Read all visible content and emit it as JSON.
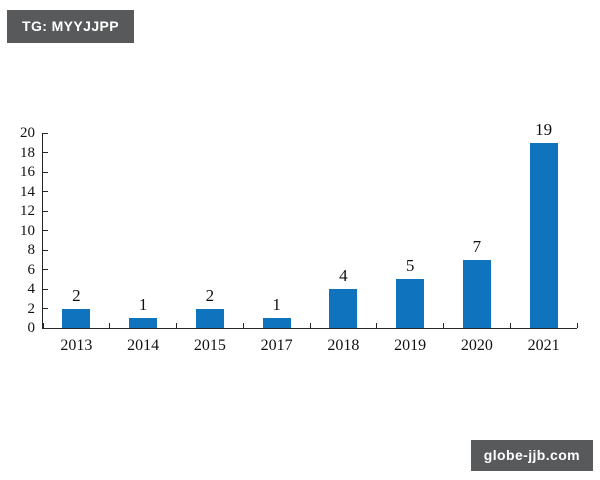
{
  "badge_top": {
    "label": "TG: MYYJJPP",
    "bg": "#58595b",
    "fg": "#ffffff"
  },
  "badge_bottom": {
    "label": "globe-jjb.com",
    "bg": "#58595b",
    "fg": "#ffffff"
  },
  "chart_data": {
    "type": "bar",
    "categories": [
      "2013",
      "2014",
      "2015",
      "2017",
      "2018",
      "2019",
      "2020",
      "2021"
    ],
    "values": [
      2,
      1,
      2,
      1,
      4,
      5,
      7,
      19
    ],
    "title": "",
    "xlabel": "",
    "ylabel": "",
    "ylim": [
      0,
      20
    ],
    "ytick_step": 2,
    "grid": false,
    "legend": "none",
    "data_labels": true,
    "bar_color": "#0f73bd",
    "axis_color": "#262626",
    "text_color": "#111111"
  }
}
